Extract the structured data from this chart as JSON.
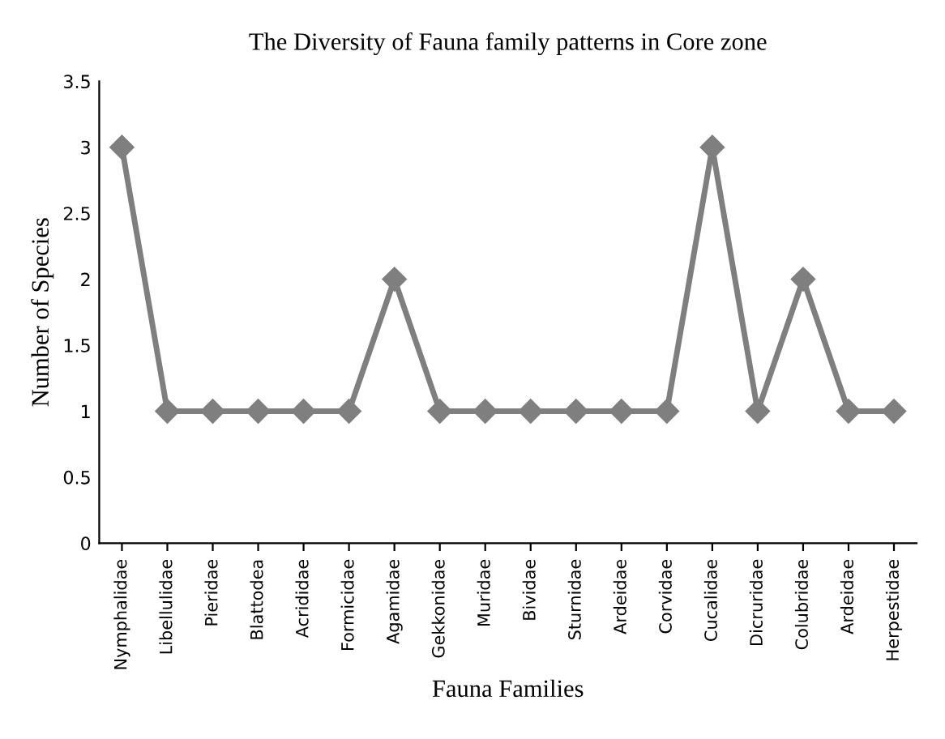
{
  "chart_data": {
    "type": "line",
    "title": "The Diversity of Fauna family patterns in Core zone",
    "xlabel": "Fauna Families",
    "ylabel": "Number of Species",
    "categories": [
      "Nymphalidae",
      "Libellulidae",
      "Pieridae",
      "Blattodea",
      "Acrididae",
      "Formicidae",
      "Agamidae",
      "Gekkonidae",
      "Muridae",
      "Bividae",
      "Sturnidae",
      "Ardeidae",
      "Corvidae",
      "Cucalidae",
      "Dicruridae",
      "Colubridae",
      "Ardeidae",
      "Herpestidae"
    ],
    "series": [
      {
        "color": "#7f7f7f",
        "values": [
          3,
          1,
          1,
          1,
          1,
          1,
          2,
          1,
          1,
          1,
          1,
          1,
          1,
          3,
          1,
          2,
          1,
          1
        ]
      }
    ],
    "ylim": [
      0,
      3.5
    ],
    "yticks": [
      0,
      0.5,
      1,
      1.5,
      2,
      2.5,
      3,
      3.5
    ],
    "grid": false,
    "marker": "diamond",
    "line_style": "solid",
    "legend": false
  }
}
